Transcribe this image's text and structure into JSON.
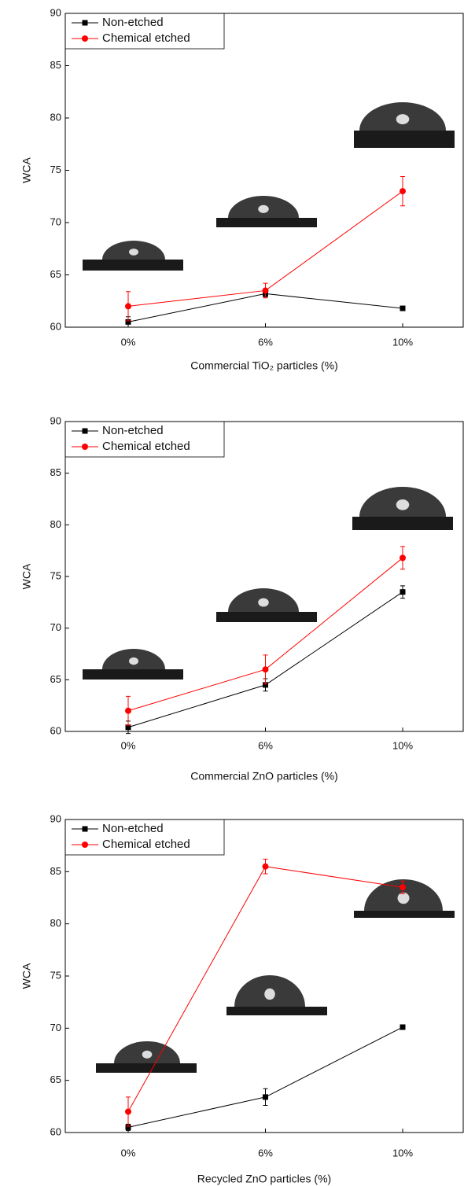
{
  "chart_data": [
    {
      "type": "line",
      "x_label": "Commercial TiO₂ particles (%)",
      "y_label": "WCA",
      "categories": [
        "0%",
        "6%",
        "10%"
      ],
      "ylim": [
        60,
        90
      ],
      "yticks": [
        60,
        65,
        70,
        75,
        80,
        85,
        90
      ],
      "legend": "upper left",
      "series": [
        {
          "name": "Non-etched",
          "color": "#000000",
          "marker": "square",
          "values": [
            60.5,
            63.2,
            61.8
          ],
          "errors": [
            0.5,
            0.3,
            0.2
          ]
        },
        {
          "name": "Chemical etched",
          "color": "#ff0000",
          "marker": "circle",
          "values": [
            62,
            63.5,
            73
          ],
          "errors": [
            1.4,
            0.7,
            1.4
          ]
        }
      ]
    },
    {
      "type": "line",
      "x_label": "Commercial ZnO particles (%)",
      "y_label": "WCA",
      "categories": [
        "0%",
        "6%",
        "10%"
      ],
      "ylim": [
        60,
        90
      ],
      "yticks": [
        60,
        65,
        70,
        75,
        80,
        85,
        90
      ],
      "legend": "upper left",
      "series": [
        {
          "name": "Non-etched",
          "color": "#000000",
          "marker": "square",
          "values": [
            60.4,
            64.5,
            73.5
          ],
          "errors": [
            0.6,
            0.6,
            0.6
          ]
        },
        {
          "name": "Chemical etched",
          "color": "#ff0000",
          "marker": "circle",
          "values": [
            62,
            66,
            76.8
          ],
          "errors": [
            1.4,
            1.4,
            1.1
          ]
        }
      ]
    },
    {
      "type": "line",
      "x_label": "Recycled ZnO particles (%)",
      "y_label": "WCA",
      "categories": [
        "0%",
        "6%",
        "10%"
      ],
      "ylim": [
        60,
        90
      ],
      "yticks": [
        60,
        65,
        70,
        75,
        80,
        85,
        90
      ],
      "legend": "upper left",
      "series": [
        {
          "name": "Non-etched",
          "color": "#000000",
          "marker": "square",
          "values": [
            60.5,
            63.4,
            70.1
          ],
          "errors": [
            0.3,
            0.8,
            0.2
          ]
        },
        {
          "name": "Chemical etched",
          "color": "#ff0000",
          "marker": "circle",
          "values": [
            62,
            85.5,
            83.5
          ],
          "errors": [
            1.4,
            0.7,
            0.6
          ]
        }
      ]
    }
  ]
}
